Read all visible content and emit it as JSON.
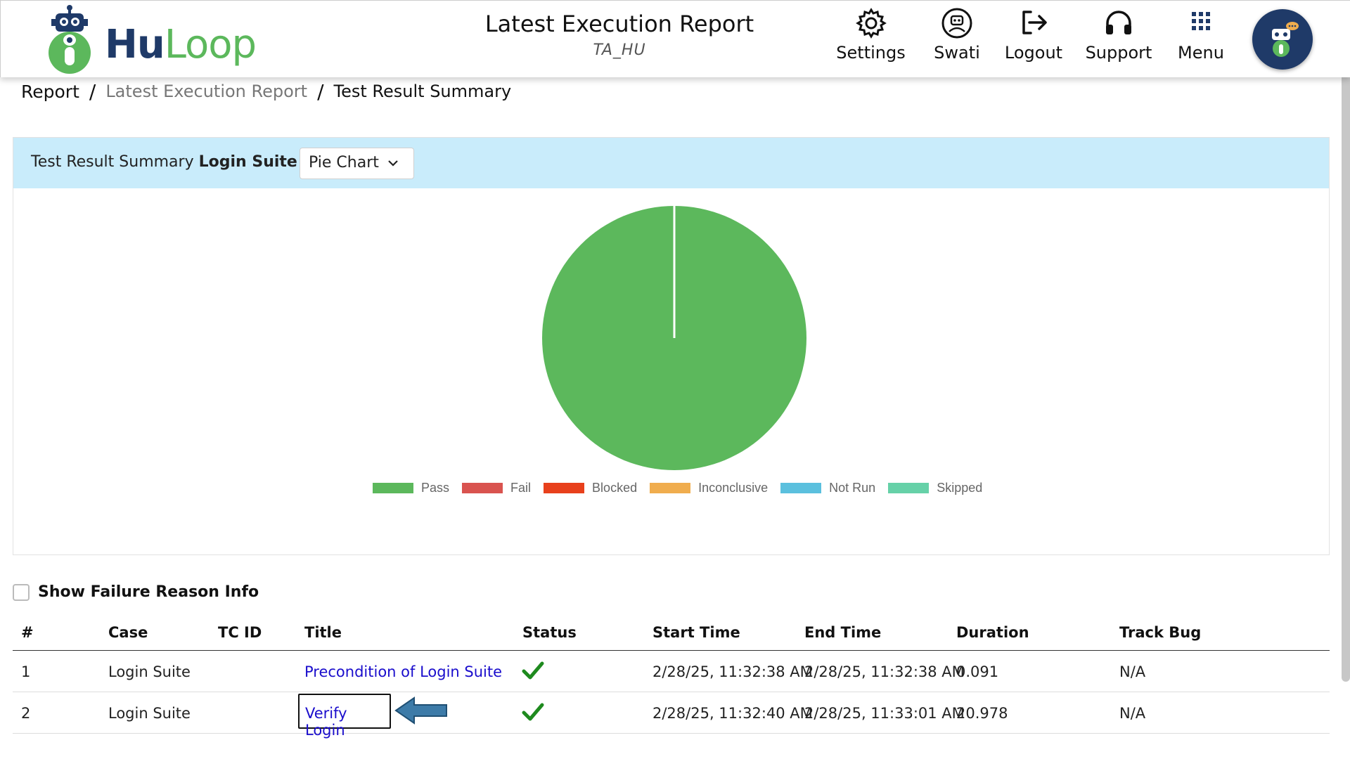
{
  "header": {
    "logo_text_hu": "Hu",
    "logo_text_loop": "Loop",
    "title": "Latest Execution Report",
    "subtitle": "TA_HU",
    "nav": [
      {
        "label": "Settings",
        "icon": "gear-icon"
      },
      {
        "label": "Swati",
        "icon": "user-robot-icon"
      },
      {
        "label": "Logout",
        "icon": "logout-icon"
      },
      {
        "label": "Support",
        "icon": "headset-icon"
      },
      {
        "label": "Menu",
        "icon": "grid-icon"
      }
    ]
  },
  "breadcrumb": {
    "root": "Report",
    "sep": "/",
    "middle": "Latest Execution Report",
    "current": "Test Result Summary"
  },
  "summary": {
    "title_prefix": "Test Result Summary",
    "suite_name": "Login Suite",
    "chart_type_selected": "Pie Chart"
  },
  "chart_data": {
    "type": "pie",
    "labels": [
      "Pass",
      "Fail",
      "Blocked",
      "Inconclusive",
      "Not Run",
      "Skipped"
    ],
    "values": [
      2,
      0,
      0,
      0,
      0,
      0
    ],
    "colors": [
      "#5cb85c",
      "#d9534f",
      "#e8401c",
      "#f0ad4e",
      "#5bc0de",
      "#66d1a8"
    ],
    "legend": "bottom"
  },
  "failure_toggle": {
    "label": "Show Failure Reason Info",
    "checked": false
  },
  "table": {
    "columns": [
      "#",
      "Case",
      "TC ID",
      "Title",
      "Status",
      "Start Time",
      "End Time",
      "Duration",
      "Track Bug"
    ],
    "rows": [
      {
        "num": "1",
        "case": "Login Suite",
        "tcid": "",
        "title": "Precondition of Login Suite",
        "status": "pass",
        "start": "2/28/25, 11:32:38 AM",
        "end": "2/28/25, 11:32:38 AM",
        "duration": "0.091",
        "bug": "N/A"
      },
      {
        "num": "2",
        "case": "Login Suite",
        "tcid": "",
        "title": "Verify Login",
        "status": "pass",
        "start": "2/28/25, 11:32:40 AM",
        "end": "2/28/25, 11:33:01 AM",
        "duration": "20.978",
        "bug": "N/A"
      }
    ]
  },
  "colors": {
    "brand_navy": "#1f3a68",
    "brand_green": "#5cb85c",
    "panel_header": "#c9ecfb",
    "link": "#1a0dcc",
    "status_pass": "#1e8a1e",
    "arrow": "#3d7ba8"
  }
}
